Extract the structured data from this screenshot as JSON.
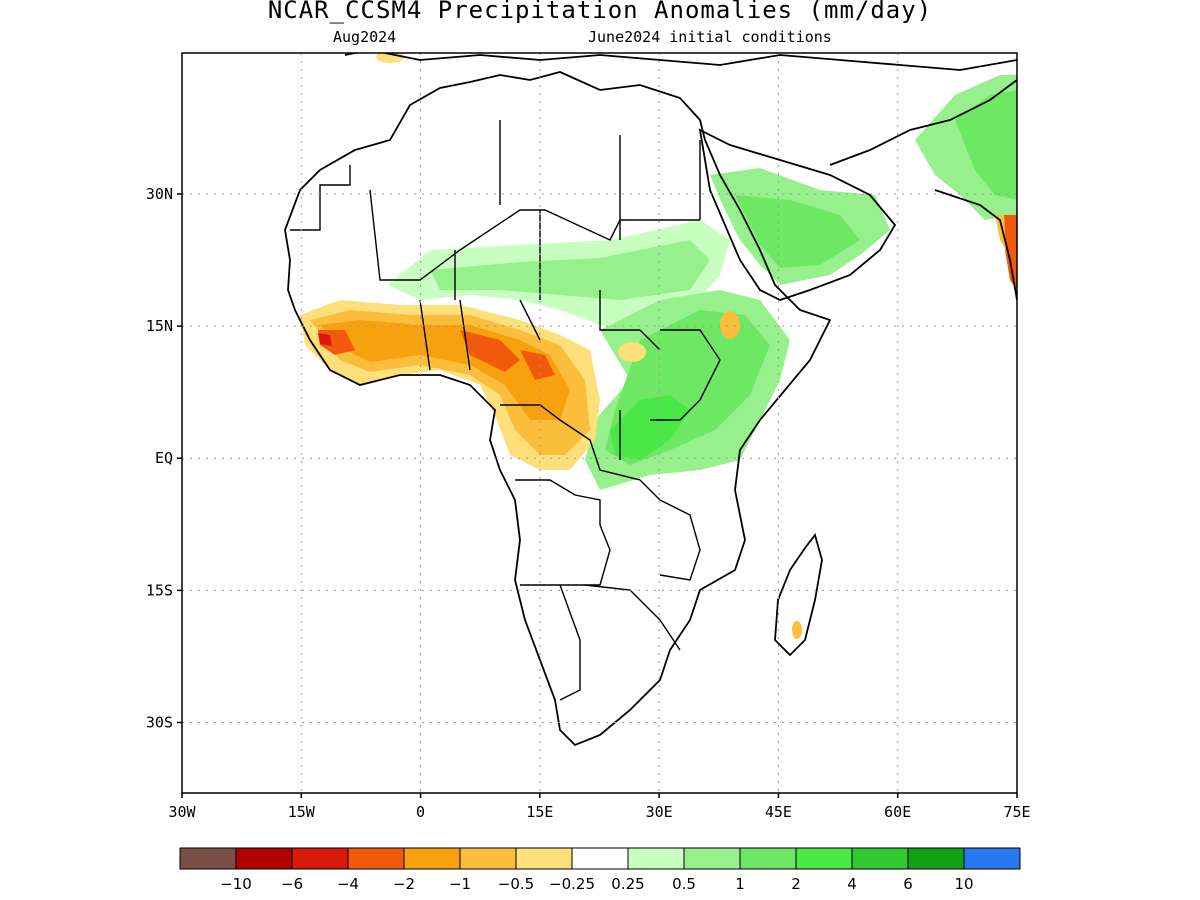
{
  "title": "NCAR_CCSM4 Precipitation Anomalies (mm/day)",
  "subtitle_left": "Aug2024",
  "subtitle_right": "June2024 initial conditions",
  "map": {
    "lon_range": [
      -30,
      75
    ],
    "lat_range": [
      -38,
      46
    ],
    "x_ticks": [
      {
        "lon": -30,
        "label": "30W"
      },
      {
        "lon": -15,
        "label": "15W"
      },
      {
        "lon": 0,
        "label": "0"
      },
      {
        "lon": 15,
        "label": "15E"
      },
      {
        "lon": 30,
        "label": "30E"
      },
      {
        "lon": 45,
        "label": "45E"
      },
      {
        "lon": 60,
        "label": "60E"
      },
      {
        "lon": 75,
        "label": "75E"
      }
    ],
    "y_ticks": [
      {
        "lat": 30,
        "label": "30N"
      },
      {
        "lat": 15,
        "label": "15N"
      },
      {
        "lat": 0,
        "label": "EQ"
      },
      {
        "lat": -15,
        "label": "15S"
      },
      {
        "lat": -30,
        "label": "30S"
      }
    ],
    "grid": "dotted"
  },
  "colorbar": {
    "colors": [
      "#7a4e44",
      "#b30000",
      "#d81a0a",
      "#f05a0a",
      "#f7a10f",
      "#fbbe3c",
      "#fddf7c",
      "#ffffff",
      "#c8ffc0",
      "#96f08c",
      "#6ee864",
      "#4ae846",
      "#32c832",
      "#14a014",
      "#2878f0"
    ],
    "labels": [
      "-10",
      "-6",
      "-4",
      "-2",
      "-1",
      "-0.5",
      "-0.25",
      "0.25",
      "0.5",
      "1",
      "2",
      "4",
      "6",
      "10"
    ]
  }
}
